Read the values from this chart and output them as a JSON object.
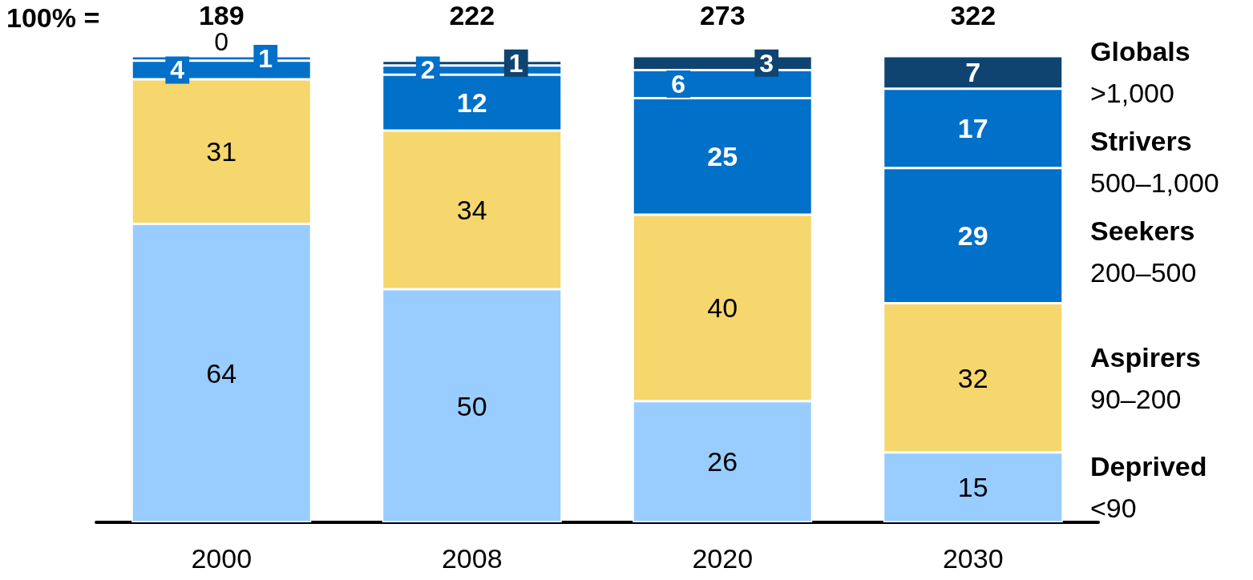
{
  "chart_data": {
    "type": "bar",
    "stacked": true,
    "data_labels": true,
    "legend": "right",
    "categories": [
      "2000",
      "2008",
      "2020",
      "2030"
    ],
    "series": [
      {
        "name": "Deprived\n<90",
        "color": "#99ccff",
        "values": [
          64,
          50,
          26,
          15
        ]
      },
      {
        "name": "Aspirers\n90–200",
        "color": "#f5d76e",
        "values": [
          31,
          34,
          40,
          32
        ]
      },
      {
        "name": "Seekers\n200–500",
        "color": "#0070c8",
        "values": [
          4,
          12,
          25,
          29
        ]
      },
      {
        "name": "Strivers\n500–1,000",
        "color": "#0070c8",
        "values": [
          1,
          2,
          6,
          17
        ]
      },
      {
        "name": "Globals\n>1,000",
        "color": "#0f4470",
        "values": [
          0,
          1,
          3,
          7
        ]
      }
    ],
    "annotations": [
      "100% =",
      "189",
      "222",
      "273",
      "322"
    ]
  }
}
